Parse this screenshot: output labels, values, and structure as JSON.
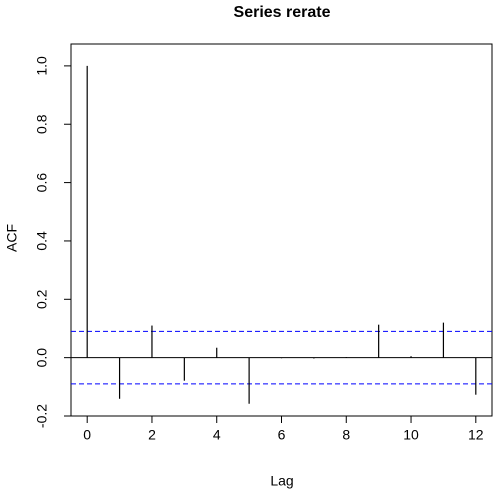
{
  "chart_data": {
    "type": "acf",
    "title": "Series rerate",
    "x_label": "Lag",
    "y_label": "ACF",
    "x": [
      0,
      1,
      2,
      3,
      4,
      5,
      6,
      7,
      8,
      9,
      10,
      11,
      12
    ],
    "values": [
      1.0,
      -0.141,
      0.11,
      -0.079,
      0.034,
      -0.158,
      -0.002,
      -0.003,
      0.002,
      0.113,
      0.005,
      0.12,
      -0.127
    ],
    "color": "#000000",
    "ci_lines": [
      0.09,
      -0.09
    ],
    "ci_color": "#0000ff",
    "xlim": [
      -0.5,
      12.5
    ],
    "ylim": [
      -0.2,
      1.075
    ],
    "xticks": [
      0,
      2,
      4,
      6,
      8,
      10,
      12
    ],
    "yticks": [
      -0.2,
      {
        "value": 0,
        "label": "0.0"
      },
      0.2,
      0.4,
      0.6,
      0.8,
      {
        "value": 1,
        "label": "1.0"
      }
    ]
  }
}
